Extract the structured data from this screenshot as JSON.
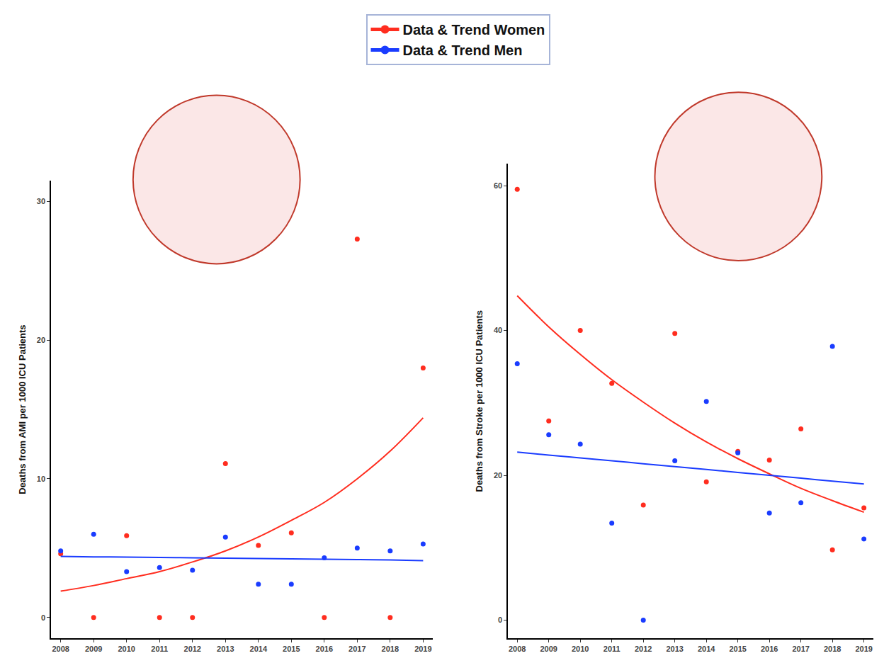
{
  "chart_data": [
    {
      "type": "scatter",
      "y_label": "Deaths from AMI per 1000 ICU Patients",
      "x": [
        2008,
        2009,
        2010,
        2011,
        2012,
        2013,
        2014,
        2015,
        2016,
        2017,
        2018,
        2019
      ],
      "xlim": [
        2007.7,
        2019.3
      ],
      "xticks": [
        2008,
        2009,
        2010,
        2011,
        2012,
        2013,
        2014,
        2015,
        2016,
        2017,
        2018,
        2019
      ],
      "ylim": [
        -1.5,
        31.5
      ],
      "yticks": [
        0,
        10,
        20,
        30
      ],
      "grid": false,
      "legend": "top",
      "series": [
        {
          "name": "Data & Trend Women",
          "color": "#ff2d1f",
          "marker": "circle",
          "values": [
            4.6,
            0,
            5.9,
            0,
            0,
            11.1,
            5.2,
            6.1,
            0,
            27.3,
            0,
            18.0
          ],
          "trend": [
            1.9,
            2.3,
            2.8,
            3.3,
            4.0,
            4.8,
            5.8,
            7.0,
            8.3,
            10.0,
            12.0,
            14.4
          ]
        },
        {
          "name": "Data & Trend Men",
          "color": "#1a3cff",
          "marker": "circle",
          "values": [
            4.8,
            6.0,
            3.3,
            3.6,
            3.4,
            5.8,
            2.4,
            2.4,
            4.3,
            5.0,
            4.8,
            5.3
          ],
          "trend": [
            4.4,
            4.37,
            4.35,
            4.32,
            4.3,
            4.27,
            4.25,
            4.22,
            4.2,
            4.17,
            4.15,
            4.1
          ]
        }
      ]
    },
    {
      "type": "scatter",
      "y_label": "Deaths from Stroke per 1000 ICU Patients",
      "x": [
        2008,
        2009,
        2010,
        2011,
        2012,
        2013,
        2014,
        2015,
        2016,
        2017,
        2018,
        2019
      ],
      "xlim": [
        2007.7,
        2019.3
      ],
      "xticks": [
        2008,
        2009,
        2010,
        2011,
        2012,
        2013,
        2014,
        2015,
        2016,
        2017,
        2018,
        2019
      ],
      "ylim": [
        -2.5,
        63
      ],
      "yticks": [
        0,
        20,
        40,
        60
      ],
      "grid": false,
      "legend": "top",
      "series": [
        {
          "name": "Data & Trend Women",
          "color": "#ff2d1f",
          "marker": "circle",
          "values": [
            59.5,
            27.5,
            40.0,
            32.7,
            15.9,
            39.6,
            19.1,
            23.3,
            22.1,
            26.4,
            9.7,
            15.5
          ],
          "trend": [
            44.8,
            40.5,
            36.7,
            33.2,
            30.1,
            27.2,
            24.6,
            22.3,
            20.2,
            18.2,
            16.5,
            14.9
          ]
        },
        {
          "name": "Data & Trend Men",
          "color": "#1a3cff",
          "marker": "circle",
          "values": [
            35.4,
            25.6,
            24.3,
            13.4,
            0,
            22.0,
            30.2,
            23.1,
            14.8,
            16.2,
            37.8,
            11.2
          ],
          "trend": [
            23.2,
            22.8,
            22.4,
            22.0,
            21.6,
            21.2,
            20.8,
            20.4,
            20.0,
            19.6,
            19.2,
            18.8
          ]
        }
      ]
    }
  ]
}
